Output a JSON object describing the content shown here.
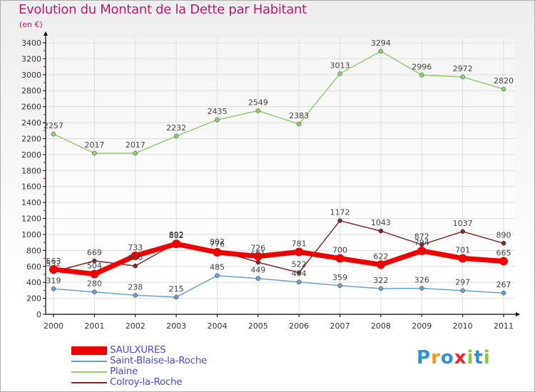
{
  "header": {
    "title": "Evolution du Montant de la Dette par Habitant",
    "subtitle": "(en €)"
  },
  "colors": {
    "title": "#c2186b",
    "legend_text": "#4a4adf",
    "axis": "#000000",
    "grid": "#dddddd"
  },
  "logo": {
    "text": "Proxiti",
    "letter_colors": [
      "#2f8fd8",
      "#f29a1e",
      "#2f8fd8",
      "#e8262f",
      "#8cc63f",
      "#2f8fd8",
      "#8cc63f"
    ]
  },
  "chart_data": {
    "type": "line",
    "title": "Evolution du Montant de la Dette par Habitant",
    "subtitle": "(en €)",
    "x": [
      "2000",
      "2001",
      "2002",
      "2003",
      "2004",
      "2005",
      "2006",
      "2007",
      "2008",
      "2009",
      "2010",
      "2011"
    ],
    "ylim": [
      0,
      3400
    ],
    "yticks": [
      0,
      200,
      400,
      600,
      800,
      1000,
      1200,
      1400,
      1600,
      1800,
      2000,
      2200,
      2400,
      2600,
      2800,
      3000,
      3200,
      3400
    ],
    "grid": true,
    "legend_position": "bottom-left",
    "series": [
      {
        "name": "SAULXURES",
        "color": "#ee0000",
        "values": [
          563,
          504,
          733,
          882,
          776,
          726,
          781,
          700,
          622,
          794,
          701,
          665
        ],
        "labels": [
          "563",
          "504",
          "733",
          "882",
          "776",
          "726",
          "781",
          "700",
          "622",
          "794",
          "701",
          "665"
        ]
      },
      {
        "name": "Saint-Blaise-la-Roche",
        "color": "#6aa0d0",
        "values": [
          319,
          280,
          238,
          215,
          485,
          449,
          404,
          359,
          322,
          326,
          297,
          267
        ],
        "labels": [
          "319",
          "280",
          "238",
          "215",
          "485",
          "449",
          "404",
          "359",
          "322",
          "326",
          "297",
          "267"
        ]
      },
      {
        "name": "Plaine",
        "color": "#90d070",
        "values": [
          2257,
          2017,
          2017,
          2232,
          2435,
          2549,
          2383,
          3013,
          3294,
          2996,
          2972,
          2820
        ],
        "labels": [
          "2257",
          "2017",
          "2017",
          "2232",
          "2435",
          "2549",
          "2383",
          "3013",
          "3294",
          "2996",
          "2972",
          "2820"
        ]
      },
      {
        "name": "Colroy-la-Roche",
        "color": "#7a2a2a",
        "values": [
          532,
          669,
          606,
          892,
          802,
          651,
          522,
          1172,
          1043,
          872,
          1037,
          890
        ],
        "labels": [
          "532",
          "669",
          "606",
          "892",
          "802",
          "651",
          "522",
          "1172",
          "1043",
          "872",
          "1037",
          "890"
        ]
      }
    ]
  }
}
